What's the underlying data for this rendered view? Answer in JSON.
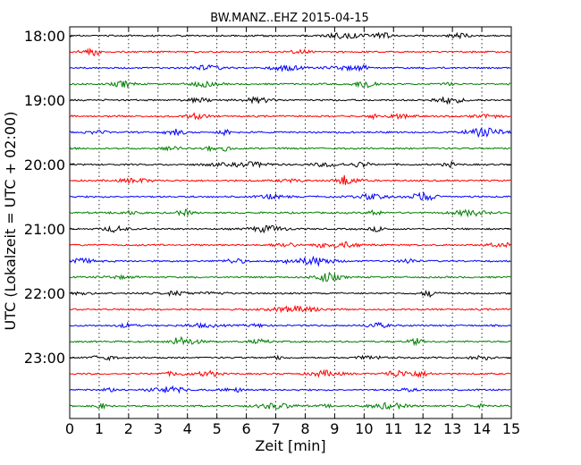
{
  "chart_data": {
    "type": "line",
    "title": "BW.MANZ..EHZ 2015-04-15",
    "xlabel": "Zeit  [min]",
    "ylabel": "UTC (Lokalzeit = UTC + 02:00)",
    "xlim": [
      0,
      15
    ],
    "x_ticks": [
      "0",
      "1",
      "2",
      "3",
      "4",
      "5",
      "6",
      "7",
      "8",
      "9",
      "10",
      "11",
      "12",
      "13",
      "14",
      "15"
    ],
    "y_tick_labels": [
      "18:00",
      "19:00",
      "20:00",
      "21:00",
      "22:00",
      "23:00"
    ],
    "grid": "vertical dotted",
    "trace_colors": [
      "#000000",
      "#ff0000",
      "#0000ff",
      "#008000"
    ],
    "traces": [
      {
        "start": "18:00"
      },
      {
        "start": "18:15"
      },
      {
        "start": "18:30"
      },
      {
        "start": "18:45"
      },
      {
        "start": "19:00"
      },
      {
        "start": "19:15"
      },
      {
        "start": "19:30"
      },
      {
        "start": "19:45"
      },
      {
        "start": "20:00"
      },
      {
        "start": "20:15"
      },
      {
        "start": "20:30"
      },
      {
        "start": "20:45"
      },
      {
        "start": "21:00"
      },
      {
        "start": "21:15"
      },
      {
        "start": "21:30"
      },
      {
        "start": "21:45"
      },
      {
        "start": "22:00"
      },
      {
        "start": "22:15"
      },
      {
        "start": "22:30"
      },
      {
        "start": "22:45"
      },
      {
        "start": "23:00"
      },
      {
        "start": "23:15"
      },
      {
        "start": "23:30"
      },
      {
        "start": "23:45"
      }
    ]
  }
}
